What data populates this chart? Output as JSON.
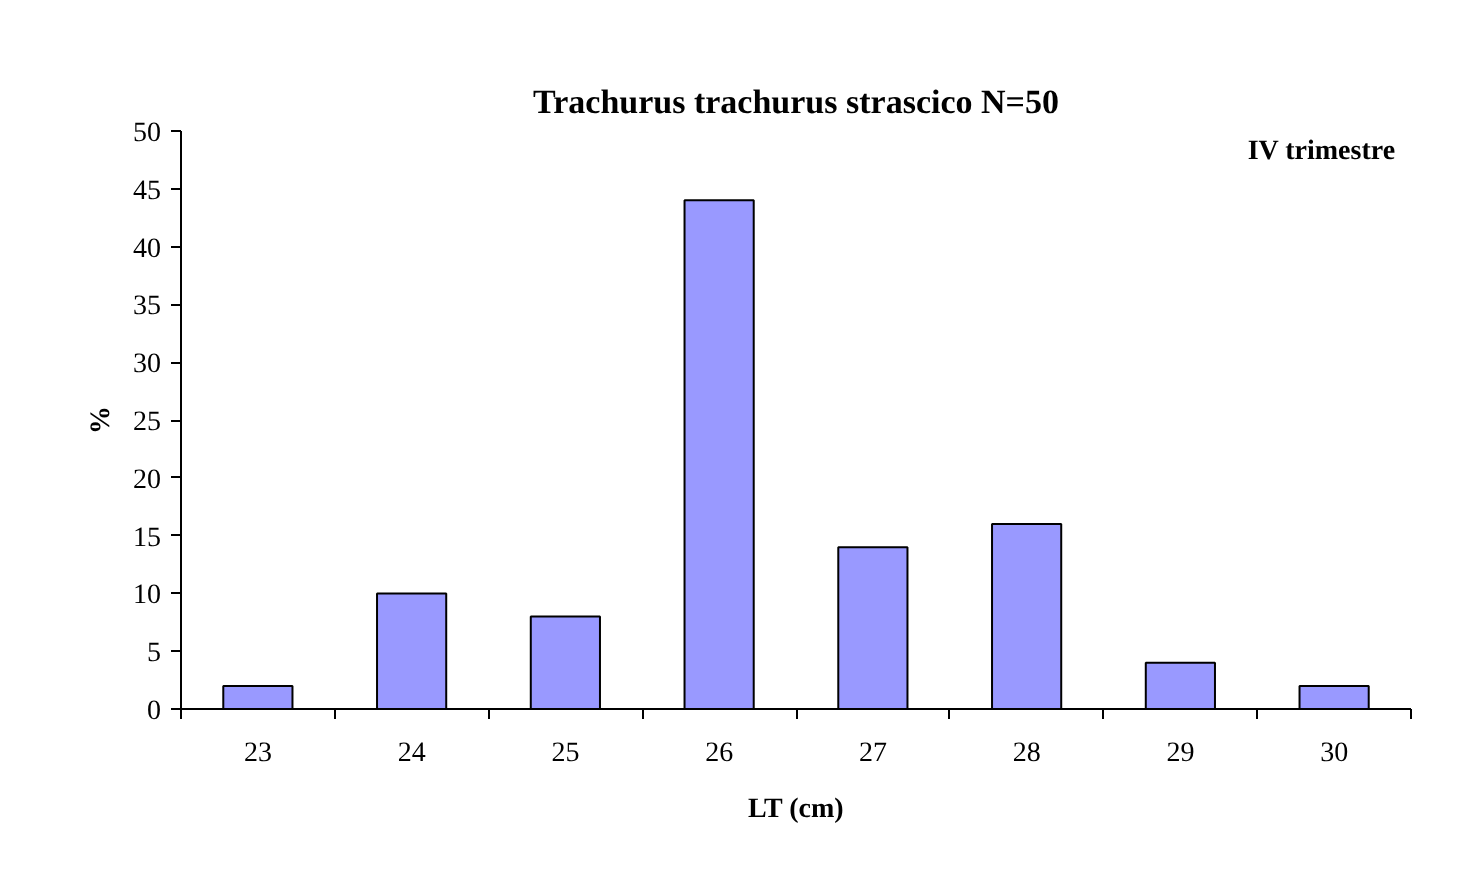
{
  "chart_data": {
    "type": "bar",
    "title": "Trachurus trachurus strascico N=50",
    "xlabel": "LT (cm)",
    "ylabel": "%",
    "categories": [
      "23",
      "24",
      "25",
      "26",
      "27",
      "28",
      "29",
      "30"
    ],
    "values": [
      2,
      10,
      8,
      44,
      14,
      16,
      4,
      2
    ],
    "color": "#9999ff",
    "ylim": [
      0,
      50
    ],
    "yticks": [
      0,
      5,
      10,
      15,
      20,
      25,
      30,
      35,
      40,
      45,
      50
    ],
    "grid": false,
    "annotations": [
      "IV trimestre"
    ]
  }
}
